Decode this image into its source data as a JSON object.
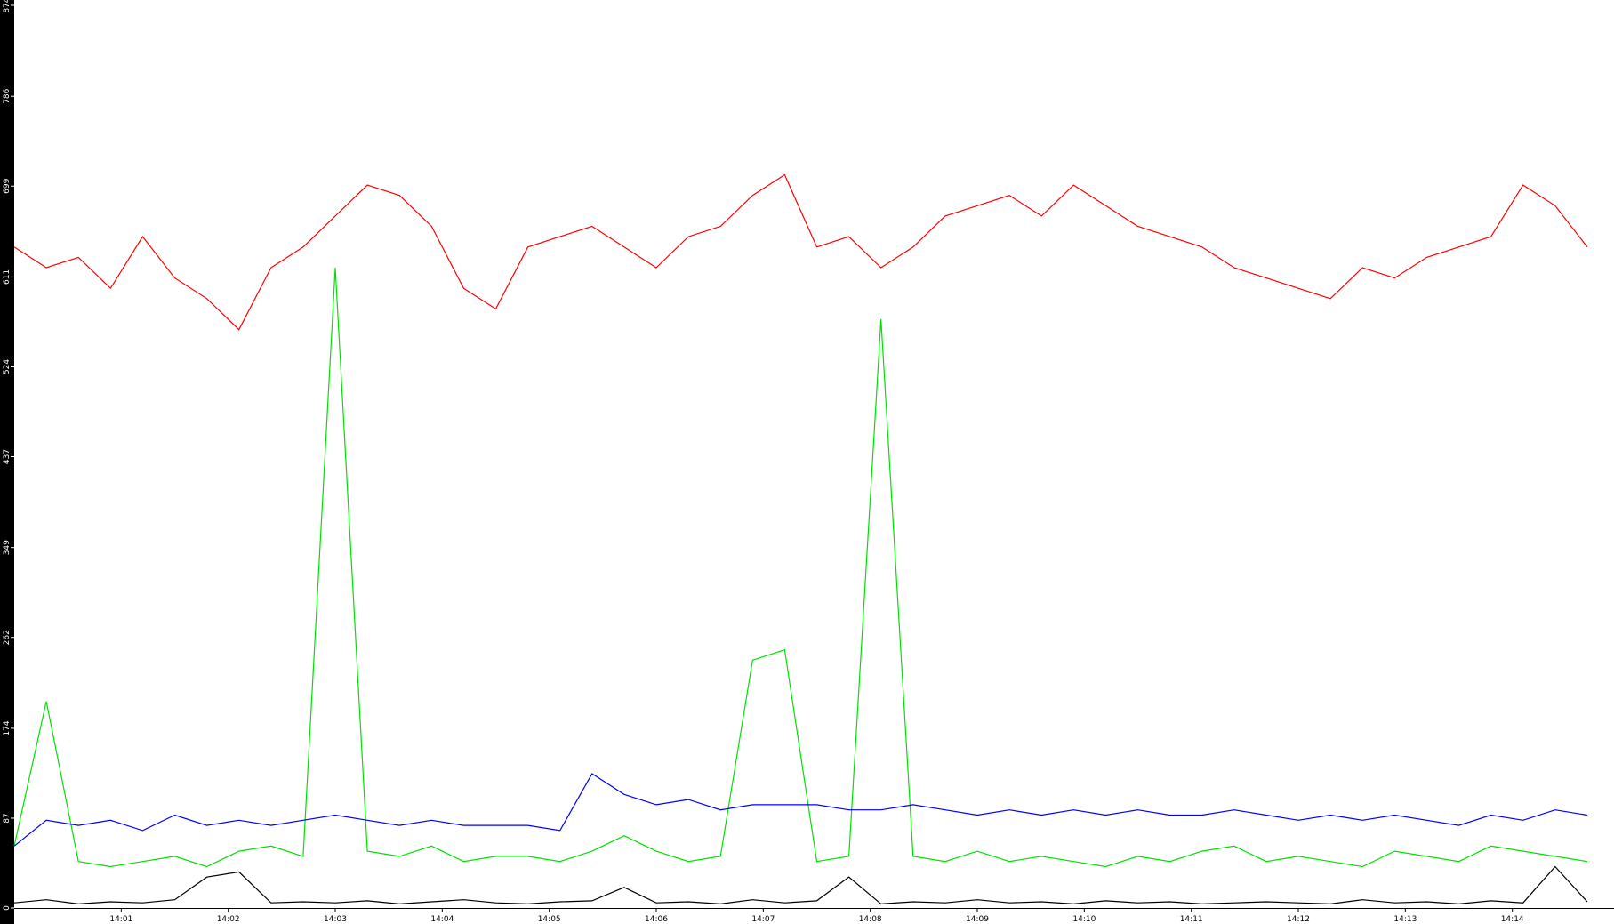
{
  "chart_data": {
    "type": "line",
    "x": [
      0,
      0.3,
      0.6,
      0.9,
      1.2,
      1.5,
      1.8,
      2.1,
      2.4,
      2.7,
      3.0,
      3.3,
      3.6,
      3.9,
      4.2,
      4.5,
      4.8,
      5.1,
      5.4,
      5.7,
      6.0,
      6.3,
      6.6,
      6.9,
      7.2,
      7.5,
      7.8,
      8.1,
      8.4,
      8.7,
      9.0,
      9.3,
      9.6,
      9.9,
      10.2,
      10.5,
      10.8,
      11.1,
      11.4,
      11.7,
      12.0,
      12.3,
      12.6,
      12.9,
      13.2,
      13.5,
      13.8,
      14.1,
      14.4,
      14.7
    ],
    "series": [
      {
        "name": "red",
        "color": "#ff0000",
        "values": [
          640,
          620,
          630,
          600,
          650,
          610,
          590,
          560,
          620,
          640,
          670,
          700,
          690,
          660,
          600,
          580,
          640,
          650,
          660,
          640,
          620,
          650,
          660,
          690,
          710,
          640,
          650,
          620,
          640,
          670,
          680,
          690,
          670,
          700,
          680,
          660,
          650,
          640,
          620,
          610,
          600,
          590,
          620,
          610,
          630,
          640,
          650,
          700,
          680,
          640
        ]
      },
      {
        "name": "green",
        "color": "#00e000",
        "values": [
          60,
          200,
          45,
          40,
          45,
          50,
          40,
          55,
          60,
          50,
          620,
          55,
          50,
          60,
          45,
          50,
          50,
          45,
          55,
          70,
          55,
          45,
          50,
          240,
          250,
          45,
          50,
          570,
          50,
          45,
          55,
          45,
          50,
          45,
          40,
          50,
          45,
          55,
          60,
          45,
          50,
          45,
          40,
          55,
          50,
          45,
          60,
          55,
          50,
          45
        ]
      },
      {
        "name": "blue",
        "color": "#0000ff",
        "values": [
          60,
          85,
          80,
          85,
          75,
          90,
          80,
          85,
          80,
          85,
          90,
          85,
          80,
          85,
          80,
          80,
          80,
          75,
          130,
          110,
          100,
          105,
          95,
          100,
          100,
          100,
          95,
          95,
          100,
          95,
          90,
          95,
          90,
          95,
          90,
          95,
          90,
          90,
          95,
          90,
          85,
          90,
          85,
          90,
          85,
          80,
          90,
          85,
          95,
          90
        ]
      },
      {
        "name": "black",
        "color": "#000000",
        "values": [
          5,
          8,
          4,
          6,
          5,
          8,
          30,
          35,
          5,
          6,
          5,
          7,
          4,
          6,
          8,
          5,
          4,
          6,
          7,
          20,
          5,
          6,
          4,
          8,
          5,
          7,
          30,
          4,
          6,
          5,
          8,
          5,
          6,
          4,
          7,
          5,
          6,
          4,
          5,
          6,
          5,
          4,
          8,
          5,
          6,
          4,
          7,
          5,
          40,
          6
        ]
      }
    ],
    "xlim": [
      0,
      14.95
    ],
    "xticks": [
      {
        "value": 1,
        "label": "14:01"
      },
      {
        "value": 2,
        "label": "14:02"
      },
      {
        "value": 3,
        "label": "14:03"
      },
      {
        "value": 4,
        "label": "14:04"
      },
      {
        "value": 5,
        "label": "14:05"
      },
      {
        "value": 6,
        "label": "14:06"
      },
      {
        "value": 7,
        "label": "14:07"
      },
      {
        "value": 8,
        "label": "14:08"
      },
      {
        "value": 9,
        "label": "14:09"
      },
      {
        "value": 10,
        "label": "14:10"
      },
      {
        "value": 11,
        "label": "14:11"
      },
      {
        "value": 12,
        "label": "14:12"
      },
      {
        "value": 13,
        "label": "14:13"
      },
      {
        "value": 14,
        "label": "14:14"
      }
    ],
    "ylim": [
      0,
      874
    ],
    "yticks": [
      0,
      87,
      174,
      262,
      349,
      437,
      524,
      611,
      699,
      786,
      874
    ]
  }
}
